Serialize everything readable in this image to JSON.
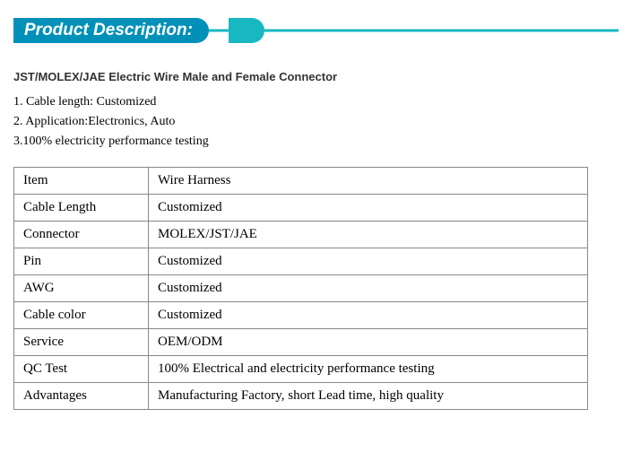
{
  "header": {
    "title": "Product Description:",
    "bg_color": "#18b8c2",
    "tab_color": "#0090b8",
    "cap_color": "#18b8c2"
  },
  "subtitle": "JST/MOLEX/JAE Electric Wire Male and Female Connector",
  "bullets": [
    "1. Cable length: Customized",
    "2. Application:Electronics, Auto",
    "3.100% electricity performance testing"
  ],
  "table": {
    "rows": [
      {
        "k": "Item",
        "v": "Wire Harness"
      },
      {
        "k": "Cable Length",
        "v": "Customized"
      },
      {
        "k": "Connector",
        "v": "MOLEX/JST/JAE"
      },
      {
        "k": "Pin",
        "v": "Customized"
      },
      {
        "k": "AWG",
        "v": "Customized"
      },
      {
        "k": "Cable color",
        "v": "Customized"
      },
      {
        "k": "Service",
        "v": "OEM/ODM"
      },
      {
        "k": "QC Test",
        "v": "100% Electrical and electricity performance testing"
      },
      {
        "k": "Advantages",
        "v": "Manufacturing Factory, short Lead time, high quality"
      }
    ]
  }
}
